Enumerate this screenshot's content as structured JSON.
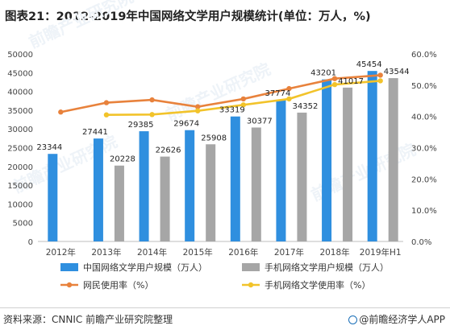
{
  "title": "图表21：2012-2019年中国网络文学用户规模统计(单位：万人，%)",
  "source": "资料来源：CNNIC 前瞻产业研究院整理",
  "brand": "@前瞻经济学人APP",
  "watermark": "前瞻产业研究院",
  "colors": {
    "bar_china": "#2f8fdf",
    "bar_mobile": "#a6a6a6",
    "line_netizen": "#e8823c",
    "line_mobile": "#f2c32a"
  },
  "chart_data": {
    "type": "bar",
    "categories": [
      "2012年",
      "2013年",
      "2014年",
      "2015年",
      "2016年",
      "2017年",
      "2018年",
      "2019年H1"
    ],
    "y_left": {
      "min": 0,
      "max": 50000,
      "ticks": [
        "0",
        "5000",
        "10000",
        "15000",
        "20000",
        "25000",
        "30000",
        "35000",
        "40000",
        "45000",
        "50000"
      ]
    },
    "y_right": {
      "min": 0,
      "max": 60,
      "ticks": [
        "0.0%",
        "10.0%",
        "20.0%",
        "30.0%",
        "40.0%",
        "50.0%",
        "60.0%"
      ]
    },
    "series": [
      {
        "name": "中国网络文学用户规模（万人）",
        "kind": "bar",
        "axis": "left",
        "color_key": "bar_china",
        "values": [
          23344,
          27441,
          29385,
          29674,
          33319,
          37774,
          43201,
          45454
        ],
        "labels": [
          "23344",
          "27441",
          "29385",
          "29674",
          "33319",
          "37774",
          "43201",
          "45454"
        ]
      },
      {
        "name": "手机网络文学用户规模（万人）",
        "kind": "bar",
        "axis": "left",
        "color_key": "bar_mobile",
        "values": [
          null,
          20228,
          22626,
          25908,
          30377,
          34352,
          41017,
          43544
        ],
        "labels": [
          "",
          "20228",
          "22626",
          "25908",
          "30377",
          "34352",
          "41017",
          "43544"
        ]
      },
      {
        "name": "网民使用率（%）",
        "kind": "line",
        "axis": "right",
        "color_key": "line_netizen",
        "values": [
          41.4,
          44.4,
          45.3,
          43.1,
          45.6,
          48.9,
          52.1,
          53.2
        ]
      },
      {
        "name": "手机网络文学使用率（%）",
        "kind": "line",
        "axis": "right",
        "color_key": "line_mobile",
        "values": [
          null,
          40.5,
          40.6,
          41.8,
          43.7,
          45.6,
          50.2,
          51.4
        ]
      }
    ],
    "legend_position": "bottom",
    "grid": false
  }
}
